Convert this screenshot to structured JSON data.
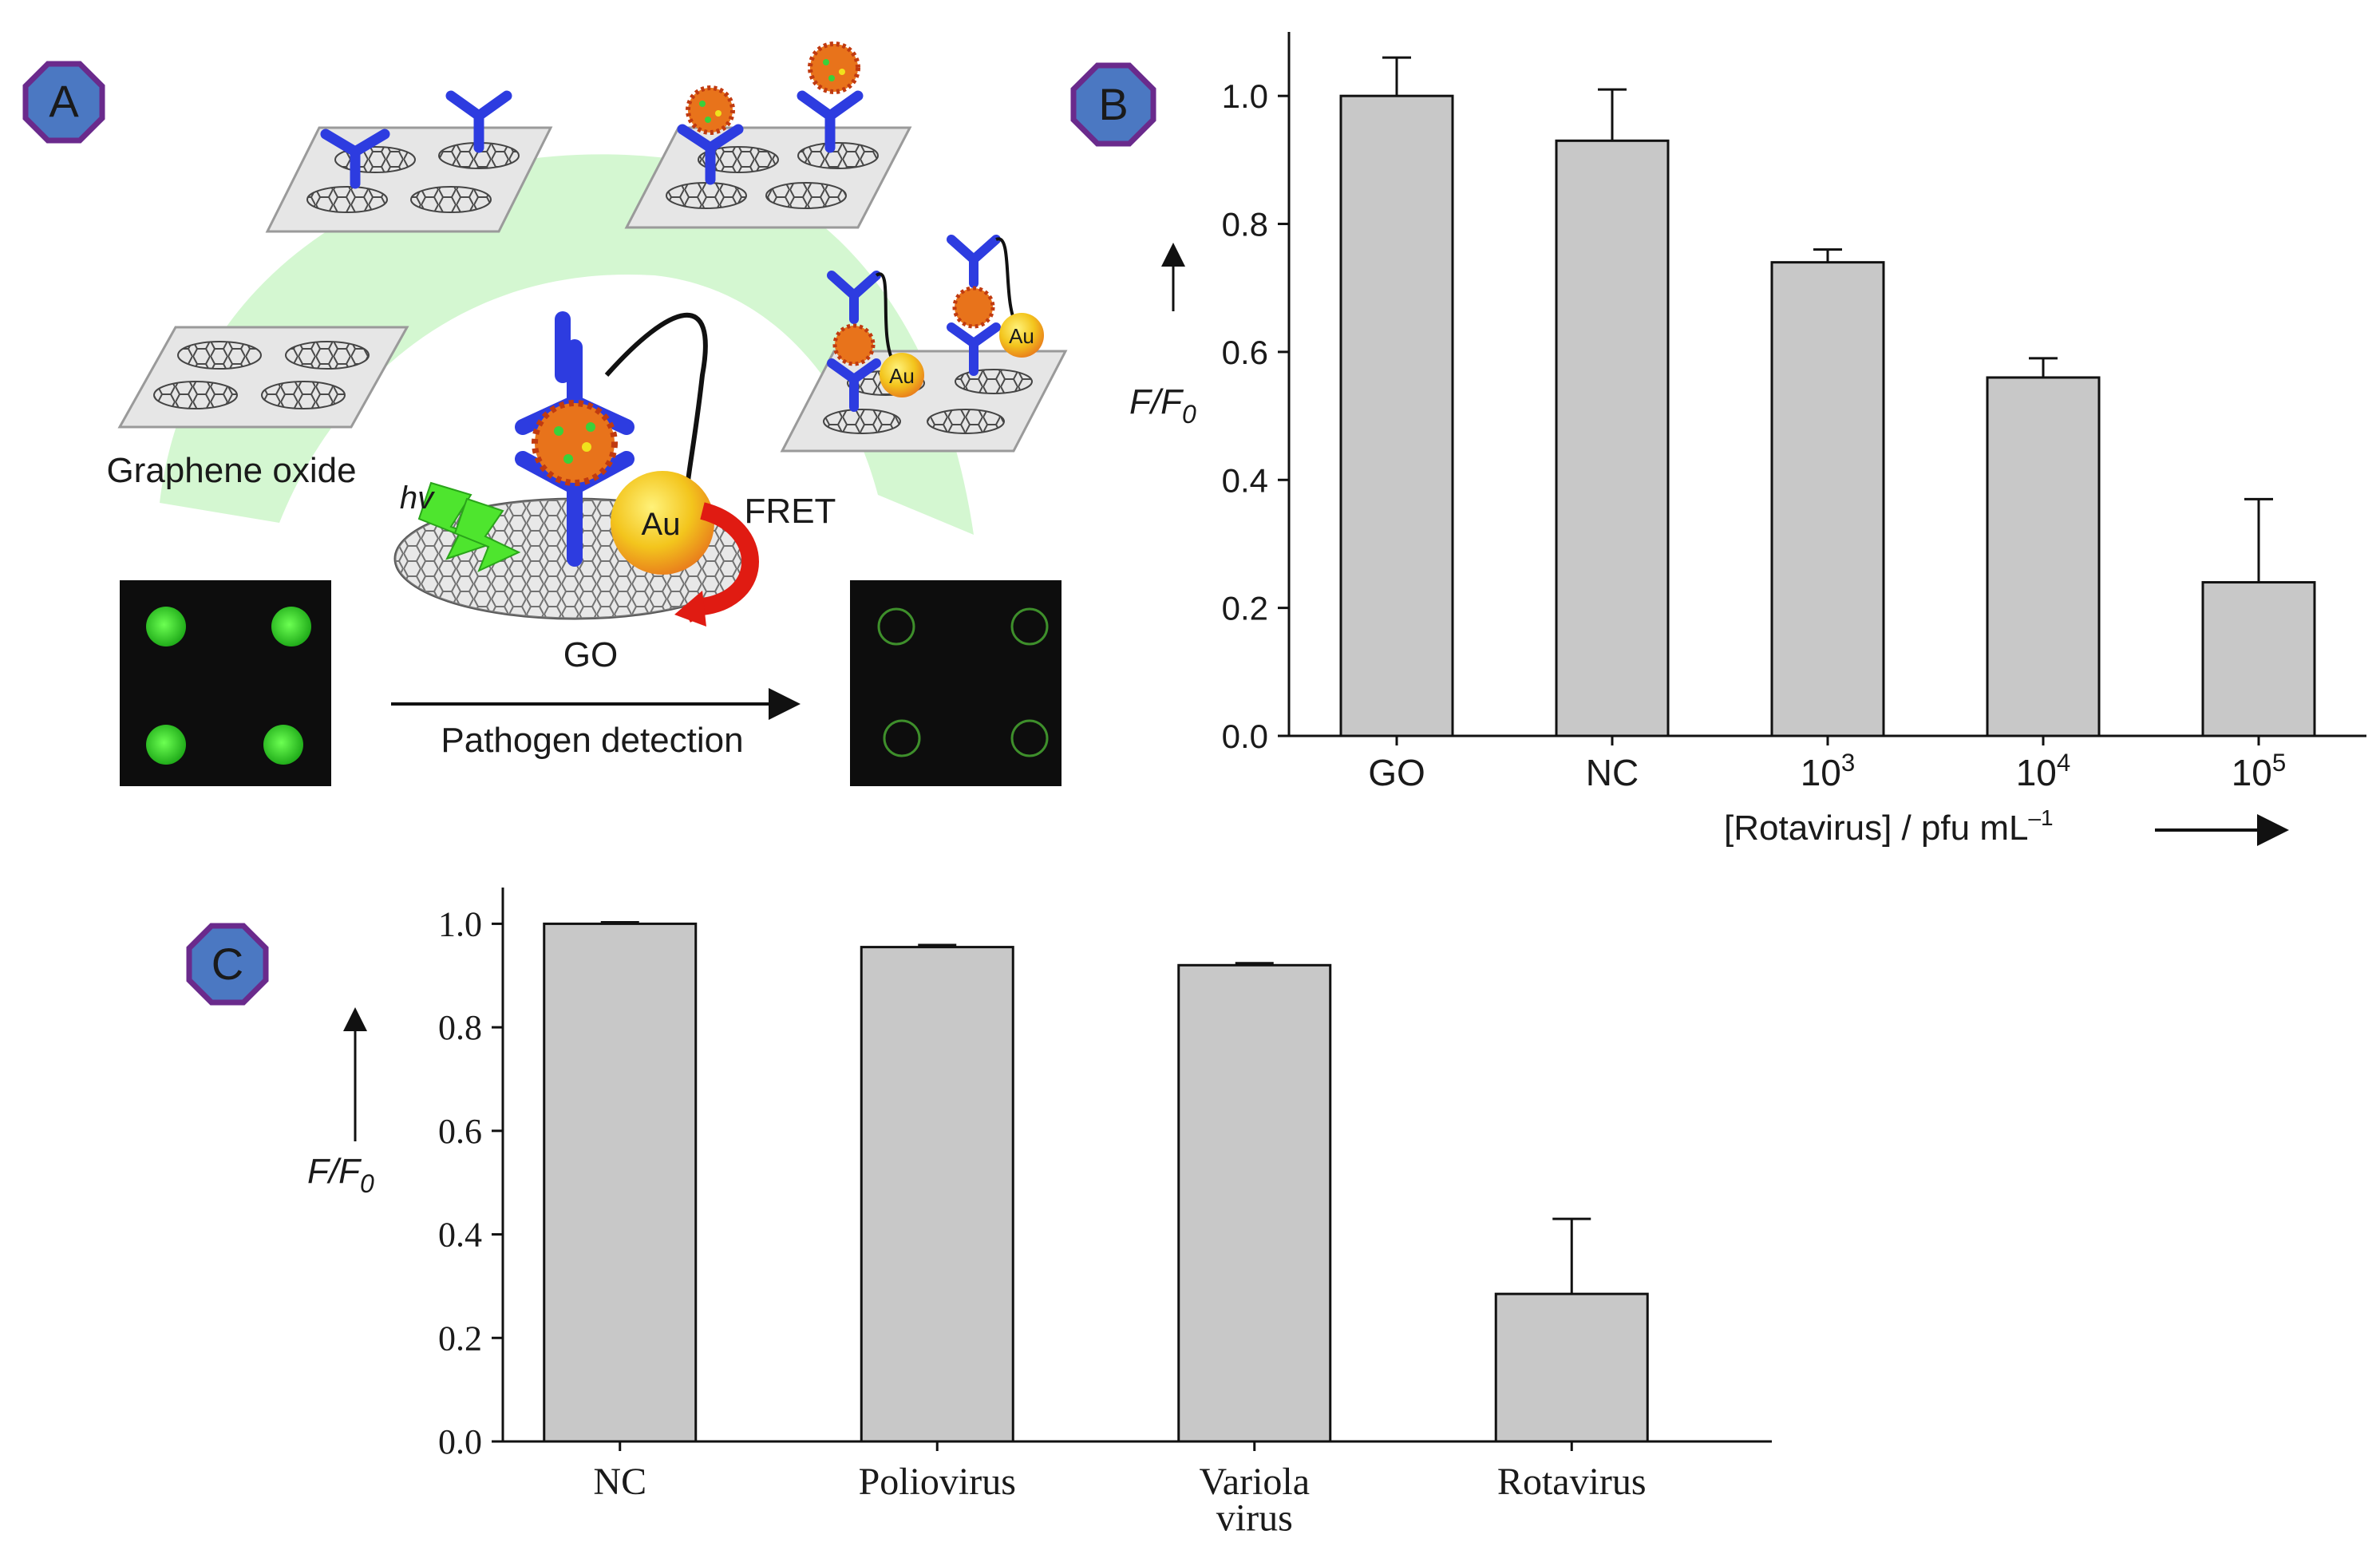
{
  "panel_badges": {
    "a": "A",
    "b": "B",
    "c": "C"
  },
  "schematic": {
    "graphene_label": "Graphene oxide",
    "hv_label": "hv",
    "au_label": "Au",
    "fret_label": "FRET",
    "go_label": "GO",
    "arrow_label": "Pathogen detection"
  },
  "colors": {
    "badge_fill": "#4b78c2",
    "badge_stroke": "#6a2a8c",
    "antibody": "#2d3ce0",
    "bar_fill": "#c8c8c8",
    "arc": "#d2f7cf",
    "spot_green": "#23c71f",
    "spot_dim": "#3e8f2b",
    "gold": "#f3c51d",
    "red_arrow": "#e01b12"
  },
  "chart_data": [
    {
      "type": "bar",
      "panel": "B",
      "categories": [
        "GO",
        "NC",
        "10^3",
        "10^4",
        "10^5"
      ],
      "category_labels": [
        {
          "base": "GO",
          "sup": ""
        },
        {
          "base": "NC",
          "sup": ""
        },
        {
          "base": "10",
          "sup": "3"
        },
        {
          "base": "10",
          "sup": "4"
        },
        {
          "base": "10",
          "sup": "5"
        }
      ],
      "values": [
        1.0,
        0.93,
        0.74,
        0.56,
        0.24
      ],
      "errors": [
        0.06,
        0.08,
        0.02,
        0.03,
        0.13
      ],
      "ylabel": {
        "main": "F/F",
        "sub": "0"
      },
      "xlabel": {
        "main": "[Rotavirus] / pfu mL",
        "sup": "–1"
      },
      "yticks": [
        "0.0",
        "0.2",
        "0.4",
        "0.6",
        "0.8",
        "1.0"
      ],
      "ylim": [
        0,
        1.1
      ]
    },
    {
      "type": "bar",
      "panel": "C",
      "categories": [
        "NC",
        "Poliovirus",
        "Variola virus",
        "Rotavirus"
      ],
      "category_labels": [
        {
          "line1": "NC",
          "line2": ""
        },
        {
          "line1": "Poliovirus",
          "line2": ""
        },
        {
          "line1": "Variola",
          "line2": "virus"
        },
        {
          "line1": "Rotavirus",
          "line2": ""
        }
      ],
      "values": [
        1.0,
        0.955,
        0.92,
        0.285
      ],
      "errors": [
        0.003,
        0.004,
        0.004,
        0.145
      ],
      "ylabel": {
        "main": "F/F",
        "sub": "0"
      },
      "yticks": [
        "0.0",
        "0.2",
        "0.4",
        "0.6",
        "0.8",
        "1.0"
      ],
      "ylim": [
        0,
        1.07
      ]
    }
  ]
}
